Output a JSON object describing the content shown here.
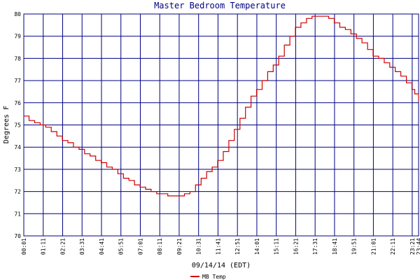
{
  "chart_data": {
    "type": "line",
    "title": "Master Bedroom Temperature",
    "xlabel": "09/14/14 (EDT)",
    "ylabel": "Degrees F",
    "ylim": [
      70,
      80
    ],
    "yticks": [
      70,
      71,
      72,
      73,
      74,
      75,
      76,
      77,
      78,
      79,
      80
    ],
    "xlim": [
      "00:01",
      "23:44"
    ],
    "xticks": [
      "00:01",
      "01:11",
      "02:21",
      "03:31",
      "04:41",
      "05:51",
      "07:01",
      "08:11",
      "09:21",
      "10:31",
      "11:41",
      "12:51",
      "14:01",
      "15:11",
      "16:21",
      "17:31",
      "18:41",
      "19:51",
      "21:01",
      "22:11",
      "23:21",
      "23:44"
    ],
    "grid": true,
    "legend_position": "bottom-center",
    "colors": {
      "series": "#cc0000",
      "grid": "#000080",
      "title": "#000080"
    },
    "series": [
      {
        "name": "MB Temp",
        "points": [
          [
            "00:01",
            75.4
          ],
          [
            "00:20",
            75.2
          ],
          [
            "00:40",
            75.1
          ],
          [
            "01:00",
            75.0
          ],
          [
            "01:20",
            74.9
          ],
          [
            "01:40",
            74.7
          ],
          [
            "02:00",
            74.5
          ],
          [
            "02:20",
            74.3
          ],
          [
            "02:40",
            74.2
          ],
          [
            "03:00",
            74.0
          ],
          [
            "03:20",
            73.9
          ],
          [
            "03:40",
            73.7
          ],
          [
            "04:00",
            73.6
          ],
          [
            "04:20",
            73.4
          ],
          [
            "04:40",
            73.3
          ],
          [
            "05:00",
            73.1
          ],
          [
            "05:20",
            73.0
          ],
          [
            "05:40",
            72.8
          ],
          [
            "06:00",
            72.6
          ],
          [
            "06:20",
            72.5
          ],
          [
            "06:40",
            72.3
          ],
          [
            "07:00",
            72.2
          ],
          [
            "07:20",
            72.1
          ],
          [
            "07:40",
            72.0
          ],
          [
            "08:00",
            71.9
          ],
          [
            "08:20",
            71.9
          ],
          [
            "08:40",
            71.8
          ],
          [
            "09:00",
            71.8
          ],
          [
            "09:20",
            71.8
          ],
          [
            "09:40",
            71.9
          ],
          [
            "10:00",
            72.0
          ],
          [
            "10:20",
            72.3
          ],
          [
            "10:40",
            72.6
          ],
          [
            "11:00",
            72.9
          ],
          [
            "11:20",
            73.1
          ],
          [
            "11:40",
            73.4
          ],
          [
            "12:00",
            73.8
          ],
          [
            "12:20",
            74.3
          ],
          [
            "12:40",
            74.8
          ],
          [
            "13:00",
            75.3
          ],
          [
            "13:20",
            75.8
          ],
          [
            "13:40",
            76.3
          ],
          [
            "14:00",
            76.6
          ],
          [
            "14:20",
            77.0
          ],
          [
            "14:40",
            77.4
          ],
          [
            "15:00",
            77.7
          ],
          [
            "15:20",
            78.1
          ],
          [
            "15:40",
            78.6
          ],
          [
            "16:00",
            79.0
          ],
          [
            "16:20",
            79.4
          ],
          [
            "16:40",
            79.6
          ],
          [
            "17:00",
            79.8
          ],
          [
            "17:20",
            79.9
          ],
          [
            "17:40",
            79.9
          ],
          [
            "18:00",
            79.9
          ],
          [
            "18:20",
            79.8
          ],
          [
            "18:40",
            79.6
          ],
          [
            "19:00",
            79.4
          ],
          [
            "19:20",
            79.3
          ],
          [
            "19:40",
            79.1
          ],
          [
            "20:00",
            78.9
          ],
          [
            "20:20",
            78.7
          ],
          [
            "20:40",
            78.4
          ],
          [
            "21:00",
            78.1
          ],
          [
            "21:20",
            78.0
          ],
          [
            "21:40",
            77.8
          ],
          [
            "22:00",
            77.6
          ],
          [
            "22:20",
            77.4
          ],
          [
            "22:40",
            77.2
          ],
          [
            "23:00",
            76.9
          ],
          [
            "23:20",
            76.6
          ],
          [
            "23:30",
            76.4
          ],
          [
            "23:44",
            76.1
          ]
        ]
      }
    ]
  }
}
